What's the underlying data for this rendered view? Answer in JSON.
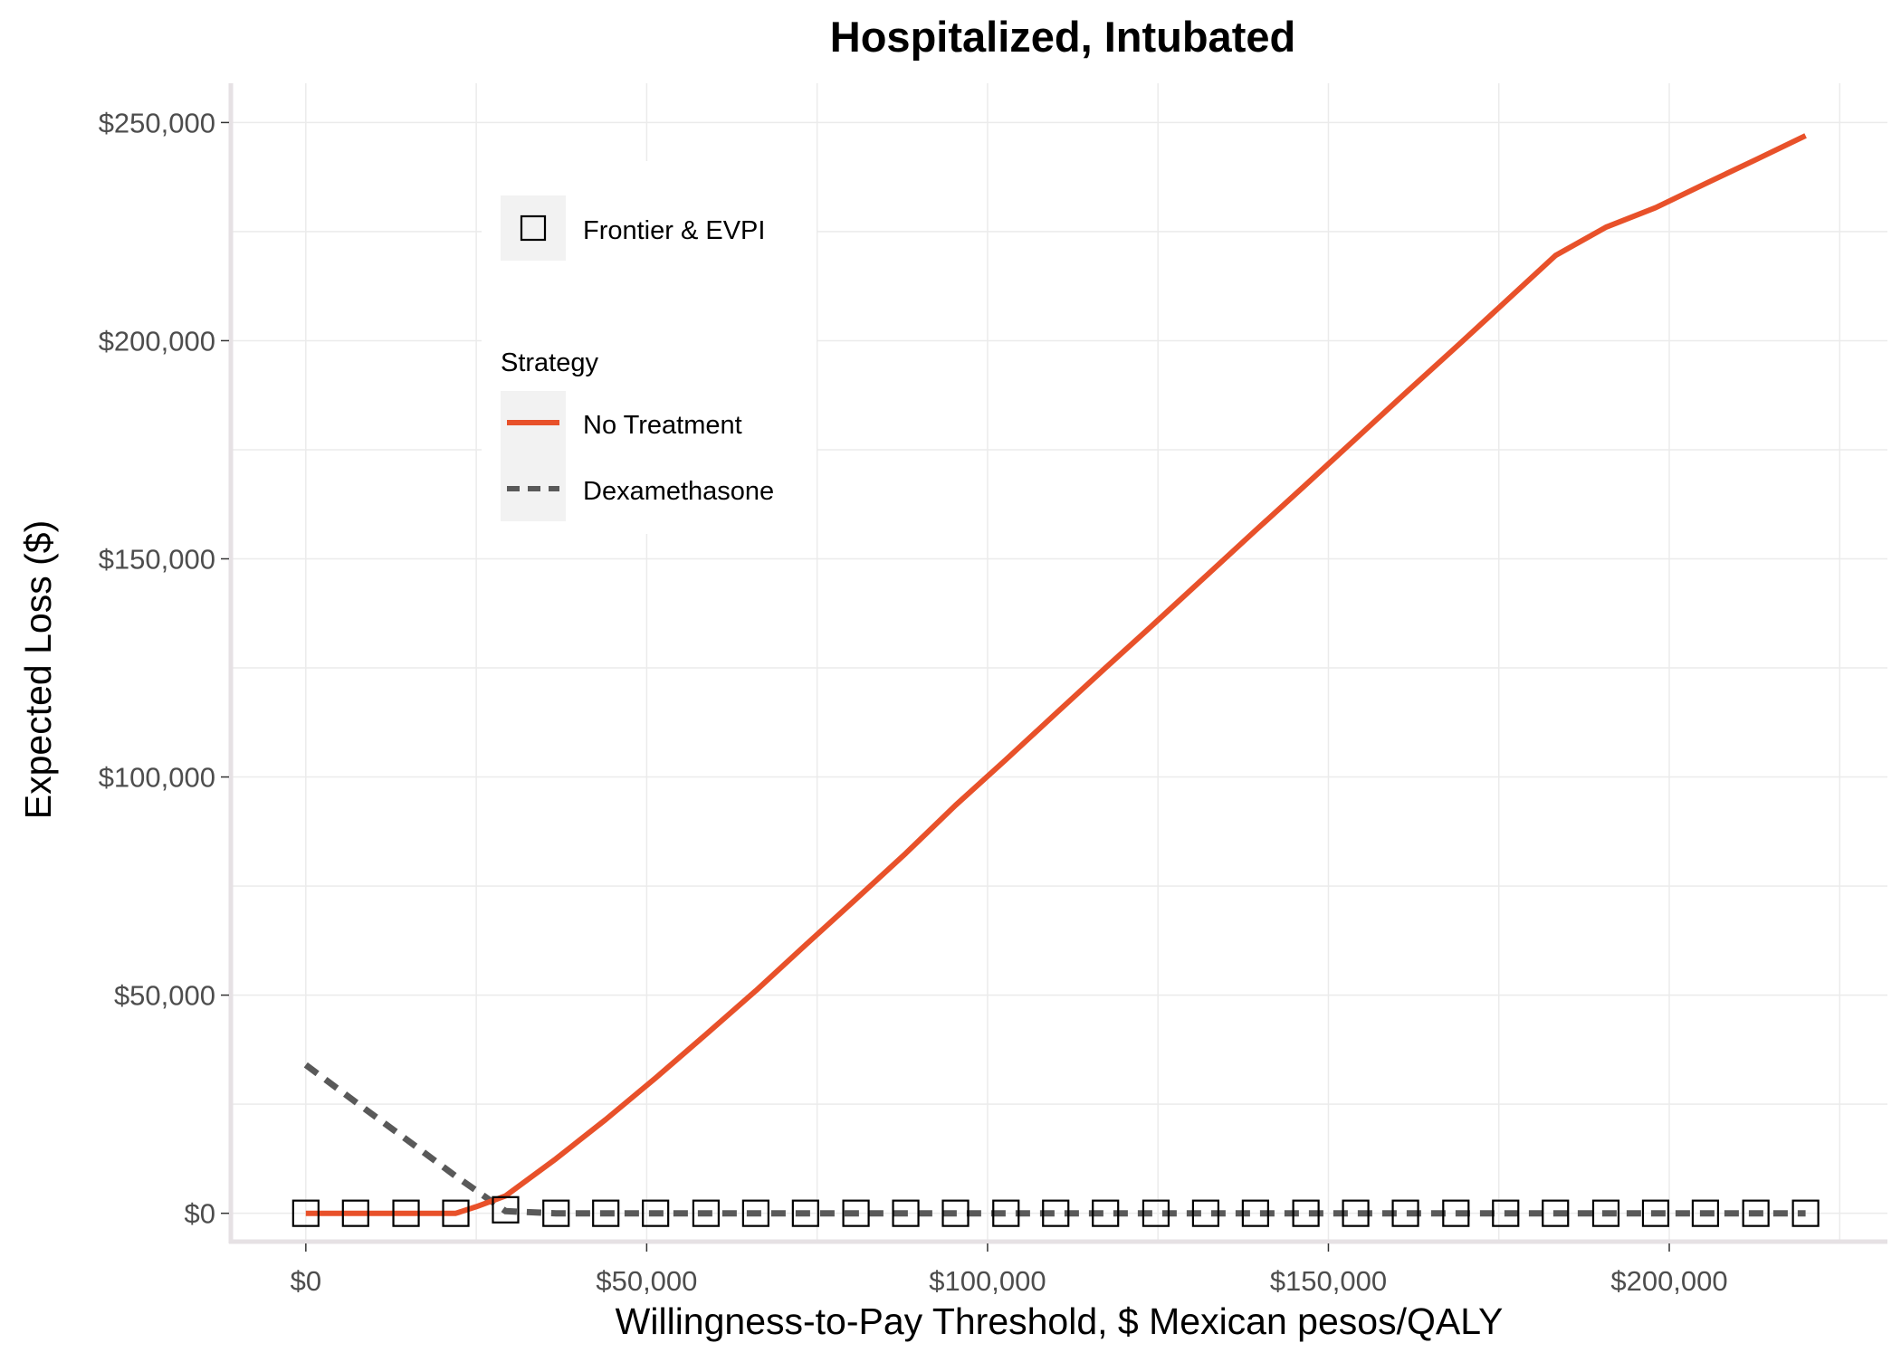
{
  "chart_data": {
    "type": "line",
    "title": "Hospitalized, Intubated",
    "xlabel": "Willingness-to-Pay Threshold, $ Mexican pesos/QALY",
    "ylabel": "Expected Loss ($)",
    "xlim": [
      -11000,
      232000
    ],
    "ylim": [
      -6500,
      259000
    ],
    "x_ticks": [
      0,
      50000,
      100000,
      150000,
      200000
    ],
    "x_tick_labels": [
      "$0",
      "$50,000",
      "$100,000",
      "$150,000",
      "$200,000"
    ],
    "y_ticks": [
      0,
      50000,
      100000,
      150000,
      200000,
      250000
    ],
    "y_tick_labels": [
      "$0",
      "$50,000",
      "$100,000",
      "$150,000",
      "$200,000",
      "$250,000"
    ],
    "grid": true,
    "colors": {
      "no_treatment": "#e8512a",
      "dexamethasone": "#595959",
      "frontier_marker": "#000000"
    },
    "legend": {
      "placement": "top-left (inside plot)",
      "marker_entry": "Frontier & EVPI",
      "title": "Strategy",
      "entries": [
        {
          "label": "No Treatment",
          "style": "solid",
          "color": "#e8512a"
        },
        {
          "label": "Dexamethasone",
          "style": "dashed",
          "color": "#595959"
        }
      ]
    },
    "series": [
      {
        "name": "No Treatment",
        "style": "solid",
        "color": "#e8512a",
        "x": [
          0,
          7300,
          14700,
          22000,
          25000,
          29300,
          36700,
          44000,
          51300,
          58700,
          66000,
          73300,
          80700,
          88000,
          95300,
          102700,
          110000,
          117300,
          124700,
          132000,
          139300,
          146700,
          154000,
          161300,
          168700,
          176000,
          183300,
          190700,
          198000,
          205300,
          212700,
          220000
        ],
        "y": [
          0,
          0,
          0,
          0,
          1500,
          4000,
          12500,
          21500,
          31000,
          41000,
          51000,
          61500,
          72000,
          82500,
          93500,
          104000,
          114500,
          125000,
          135500,
          146000,
          156500,
          167000,
          177500,
          188000,
          198500,
          209000,
          219500,
          226000,
          230500,
          236000,
          241500,
          247000
        ]
      },
      {
        "name": "Dexamethasone",
        "style": "dashed",
        "color": "#595959",
        "x": [
          0,
          7300,
          14700,
          22000,
          29300,
          36700,
          44000,
          51300,
          58700,
          66000,
          73300,
          80700,
          88000,
          95300,
          102700,
          110000,
          117300,
          124700,
          132000,
          139300,
          146700,
          154000,
          161300,
          168700,
          176000,
          183300,
          190700,
          198000,
          205300,
          212700,
          220000
        ],
        "y": [
          34000,
          25500,
          17000,
          8500,
          500,
          0,
          0,
          0,
          0,
          0,
          0,
          0,
          0,
          0,
          0,
          0,
          0,
          0,
          0,
          0,
          0,
          0,
          0,
          0,
          0,
          0,
          0,
          0,
          0,
          0,
          0
        ]
      },
      {
        "name": "Frontier & EVPI",
        "style": "open-square-markers",
        "color": "#000000",
        "x": [
          0,
          7300,
          14700,
          22000,
          29300,
          36700,
          44000,
          51300,
          58700,
          66000,
          73300,
          80700,
          88000,
          95300,
          102700,
          110000,
          117300,
          124700,
          132000,
          139300,
          146700,
          154000,
          161300,
          168700,
          176000,
          183300,
          190700,
          198000,
          205300,
          212700,
          220000
        ],
        "y": [
          0,
          0,
          0,
          0,
          800,
          0,
          0,
          0,
          0,
          0,
          0,
          0,
          0,
          0,
          0,
          0,
          0,
          0,
          0,
          0,
          0,
          0,
          0,
          0,
          0,
          0,
          0,
          0,
          0,
          0,
          0
        ]
      }
    ]
  }
}
